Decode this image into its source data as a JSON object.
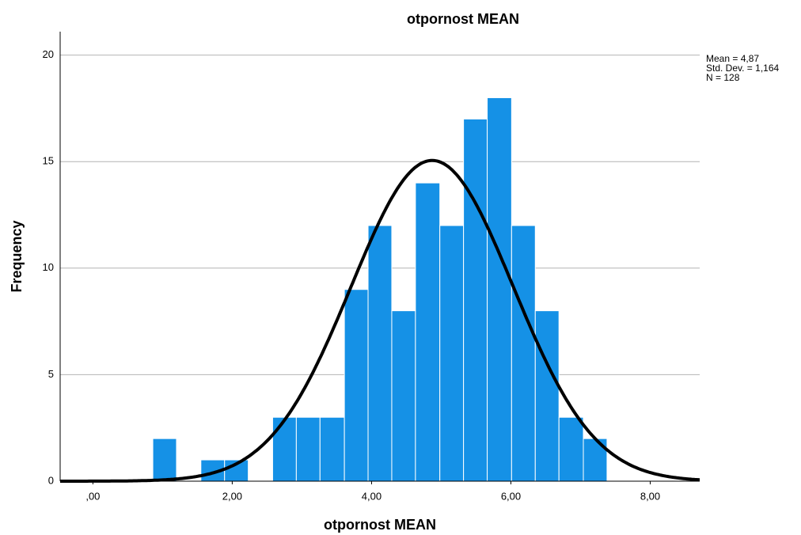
{
  "chart_data": {
    "type": "histogram",
    "title": "otpornost MEAN",
    "x_label": "otpornost MEAN",
    "y_label": "Frequency",
    "bins": [
      0.86,
      1.2,
      1.55,
      1.89,
      2.23,
      2.58,
      2.92,
      3.26,
      3.61,
      3.95,
      4.29,
      4.63,
      4.98,
      5.32,
      5.66,
      6.01,
      6.35,
      6.69,
      7.04,
      7.38
    ],
    "counts": [
      2,
      0,
      1,
      1,
      0,
      3,
      3,
      3,
      9,
      12,
      8,
      14,
      12,
      17,
      18,
      12,
      8,
      3,
      2
    ],
    "color": "#1591e6",
    "xlim": [
      -0.47,
      8.71
    ],
    "xticks": [
      {
        "value": 0,
        "label": ",00"
      },
      {
        "value": 2,
        "label": "2,00"
      },
      {
        "value": 4,
        "label": "4,00"
      },
      {
        "value": 6,
        "label": "6,00"
      },
      {
        "value": 8,
        "label": "8,00"
      }
    ],
    "ylim": [
      0,
      21.1
    ],
    "yticks": [
      0,
      5,
      10,
      15,
      20
    ],
    "grid": true,
    "normal_curve": true,
    "stats": [
      {
        "value": 4.87,
        "label": "Mean = 4,87"
      },
      {
        "value": 1.164,
        "label": "Std. Dev. = 1,164"
      },
      {
        "value": 128,
        "label": "N = 128"
      }
    ]
  }
}
